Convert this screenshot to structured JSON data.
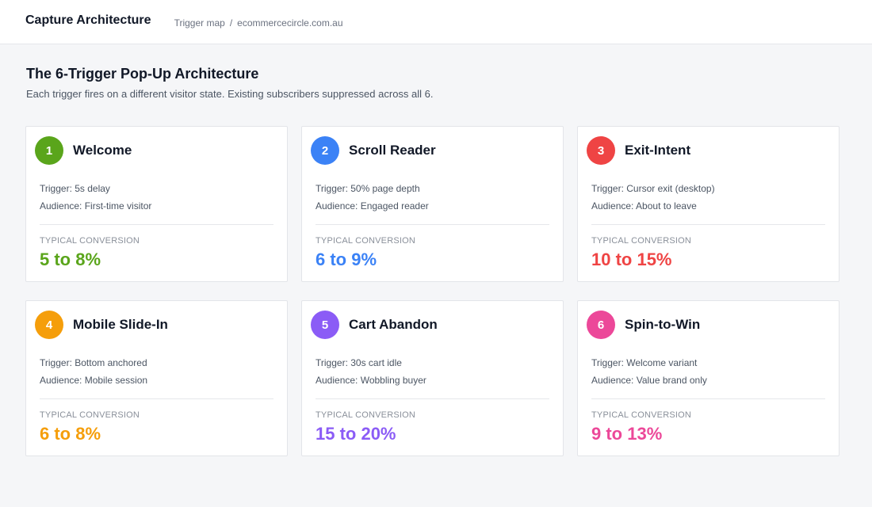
{
  "app": {
    "title": "Capture Architecture",
    "breadcrumb": {
      "section": "Trigger map",
      "separator": "/",
      "site": "ecommercecircle.com.au"
    }
  },
  "page": {
    "title": "The 6-Trigger Pop-Up Architecture",
    "subtitle": "Each trigger fires on a different visitor state. Existing subscribers suppressed across all 6."
  },
  "cards": [
    {
      "number": "1",
      "title": "Welcome",
      "trigger": "Trigger: 5s delay",
      "audience": "Audience: First-time visitor",
      "conversion_label": "TYPICAL CONVERSION",
      "conversion": "5 to 8%",
      "color": "#5aa51b"
    },
    {
      "number": "2",
      "title": "Scroll Reader",
      "trigger": "Trigger: 50% page depth",
      "audience": "Audience: Engaged reader",
      "conversion_label": "TYPICAL CONVERSION",
      "conversion": "6 to 9%",
      "color": "#3b82f6"
    },
    {
      "number": "3",
      "title": "Exit-Intent",
      "trigger": "Trigger: Cursor exit (desktop)",
      "audience": "Audience: About to leave",
      "conversion_label": "TYPICAL CONVERSION",
      "conversion": "10 to 15%",
      "color": "#ef4444"
    },
    {
      "number": "4",
      "title": "Mobile Slide-In",
      "trigger": "Trigger: Bottom anchored",
      "audience": "Audience: Mobile session",
      "conversion_label": "TYPICAL CONVERSION",
      "conversion": "6 to 8%",
      "color": "#f59e0b"
    },
    {
      "number": "5",
      "title": "Cart Abandon",
      "trigger": "Trigger: 30s cart idle",
      "audience": "Audience: Wobbling buyer",
      "conversion_label": "TYPICAL CONVERSION",
      "conversion": "15 to 20%",
      "color": "#8b5cf6"
    },
    {
      "number": "6",
      "title": "Spin-to-Win",
      "trigger": "Trigger: Welcome variant",
      "audience": "Audience: Value brand only",
      "conversion_label": "TYPICAL CONVERSION",
      "conversion": "9 to 13%",
      "color": "#ec4899"
    }
  ]
}
